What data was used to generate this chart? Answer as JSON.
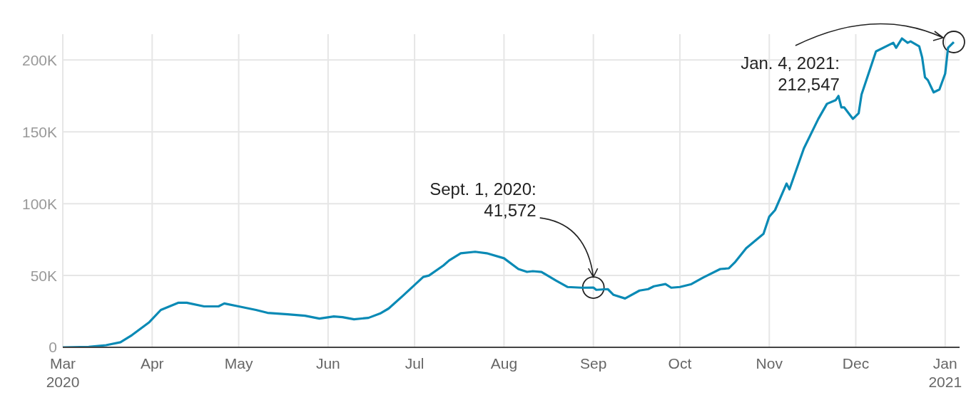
{
  "chart_data": {
    "type": "line",
    "color": "#0a8ab5",
    "grid": true,
    "x": [
      "2020-03-01",
      "2020-03-10",
      "2020-03-16",
      "2020-03-21",
      "2020-03-25",
      "2020-03-31",
      "2020-04-04",
      "2020-04-10",
      "2020-04-13",
      "2020-04-19",
      "2020-04-24",
      "2020-04-26",
      "2020-05-01",
      "2020-05-07",
      "2020-05-11",
      "2020-05-18",
      "2020-05-24",
      "2020-05-29",
      "2020-06-03",
      "2020-06-06",
      "2020-06-10",
      "2020-06-15",
      "2020-06-19",
      "2020-06-22",
      "2020-06-27",
      "2020-07-04",
      "2020-07-06",
      "2020-07-11",
      "2020-07-13",
      "2020-07-17",
      "2020-07-22",
      "2020-07-26",
      "2020-08-01",
      "2020-08-06",
      "2020-08-09",
      "2020-08-11",
      "2020-08-14",
      "2020-08-19",
      "2020-08-23",
      "2020-08-28",
      "2020-09-01",
      "2020-09-02",
      "2020-09-06",
      "2020-09-08",
      "2020-09-12",
      "2020-09-17",
      "2020-09-20",
      "2020-09-22",
      "2020-09-26",
      "2020-09-28",
      "2020-10-01",
      "2020-10-05",
      "2020-10-09",
      "2020-10-15",
      "2020-10-18",
      "2020-10-20",
      "2020-10-24",
      "2020-10-30",
      "2020-11-01",
      "2020-11-03",
      "2020-11-07",
      "2020-11-08",
      "2020-11-13",
      "2020-11-18",
      "2020-11-21",
      "2020-11-24",
      "2020-11-25",
      "2020-11-26",
      "2020-11-27",
      "2020-11-30",
      "2020-12-02",
      "2020-12-03",
      "2020-12-06",
      "2020-12-08",
      "2020-12-14",
      "2020-12-15",
      "2020-12-17",
      "2020-12-19",
      "2020-12-20",
      "2020-12-23",
      "2020-12-24",
      "2020-12-25",
      "2020-12-26",
      "2020-12-28",
      "2020-12-30",
      "2021-01-01",
      "2021-01-02",
      "2021-01-04"
    ],
    "values": [
      0,
      300,
      1500,
      3500,
      8500,
      17500,
      26000,
      31000,
      31000,
      28500,
      28500,
      30500,
      28500,
      26000,
      24000,
      23000,
      22000,
      20000,
      21500,
      21000,
      19500,
      20500,
      23500,
      27000,
      36000,
      49000,
      50000,
      57000,
      60500,
      65500,
      66500,
      65500,
      62000,
      54500,
      52500,
      53000,
      52500,
      46500,
      42000,
      41500,
      41572,
      40000,
      40500,
      36500,
      34000,
      39500,
      40500,
      42500,
      44000,
      41500,
      42000,
      44000,
      48500,
      54500,
      55000,
      59000,
      69000,
      79000,
      91000,
      95500,
      114000,
      110000,
      138500,
      159000,
      169500,
      172000,
      175000,
      167000,
      167000,
      159000,
      163000,
      176000,
      194000,
      206000,
      212000,
      208500,
      215000,
      212000,
      213000,
      209500,
      202000,
      188000,
      186000,
      177500,
      179500,
      190500,
      208500,
      212547
    ],
    "xlim": [
      "2020-03-01",
      "2021-01-06"
    ],
    "xticks": [
      {
        "value": "2020-03-01",
        "label": "Mar\n2020"
      },
      {
        "value": "2020-04-01",
        "label": "Apr"
      },
      {
        "value": "2020-05-01",
        "label": "May"
      },
      {
        "value": "2020-06-01",
        "label": "Jun"
      },
      {
        "value": "2020-07-01",
        "label": "Jul"
      },
      {
        "value": "2020-08-01",
        "label": "Aug"
      },
      {
        "value": "2020-09-01",
        "label": "Sep"
      },
      {
        "value": "2020-10-01",
        "label": "Oct"
      },
      {
        "value": "2020-11-01",
        "label": "Nov"
      },
      {
        "value": "2020-12-01",
        "label": "Dec"
      },
      {
        "value": "2021-01-01",
        "label": "Jan\n2021"
      }
    ],
    "ylim": [
      0,
      218000
    ],
    "yticks": [
      {
        "value": 0,
        "label": "0"
      },
      {
        "value": 50000,
        "label": "50K"
      },
      {
        "value": 100000,
        "label": "100K"
      },
      {
        "value": 150000,
        "label": "150K"
      },
      {
        "value": 200000,
        "label": "200K"
      }
    ],
    "value_labels": [
      null,
      null,
      null,
      null,
      null,
      null,
      null,
      null,
      null,
      null,
      null,
      null,
      null,
      null,
      null,
      null,
      null,
      null,
      null,
      null,
      null,
      null,
      null,
      null,
      null,
      null,
      null,
      null,
      null,
      null,
      null,
      null,
      null,
      null,
      null,
      null,
      null,
      null,
      null,
      null,
      "Sept. 1, 2020:\n41,572",
      null,
      null,
      null,
      null,
      null,
      null,
      null,
      null,
      null,
      null,
      null,
      null,
      null,
      null,
      null,
      null,
      null,
      null,
      null,
      null,
      null,
      null,
      null,
      null,
      null,
      null,
      null,
      null,
      null,
      null,
      null,
      null,
      null,
      null,
      null,
      null,
      null,
      null,
      null,
      null,
      null,
      null,
      null,
      null,
      null,
      null,
      "Jan. 4, 2021:\n212,547"
    ]
  }
}
